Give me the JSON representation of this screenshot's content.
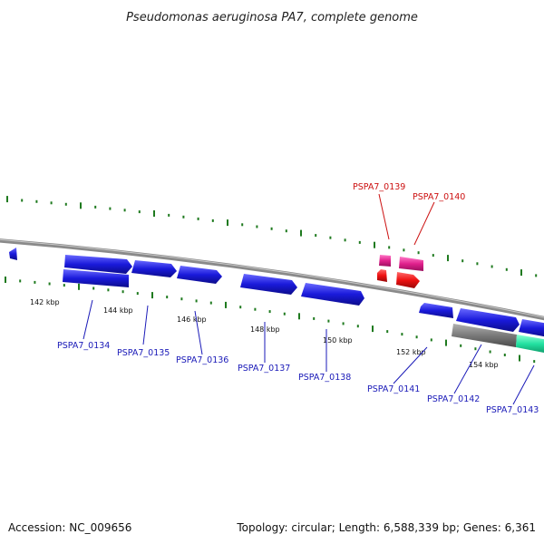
{
  "title": "Pseudomonas aeruginosa PA7, complete genome",
  "footer": {
    "accession": "Accession: NC_009656",
    "summary": "Topology: circular; Length: 6,588,339 bp; Genes: 6,361"
  },
  "colors": {
    "backbone": "#808080",
    "gene_fwd": "#1a1adb",
    "gene_rev": "#1a1adb",
    "gene_pink": "#e0208c",
    "gene_red": "#ee1111",
    "feature_gray": "#7a7a7a",
    "feature_teal": "#22e0a0",
    "gc_ticks": "#1f7a1f",
    "label_blue": "#1a1ab8",
    "label_red": "#cc1111"
  },
  "scale_labels": [
    {
      "name": "kbp-142",
      "text": "142 kbp"
    },
    {
      "name": "kbp-144",
      "text": "144 kbp"
    },
    {
      "name": "kbp-146",
      "text": "146 kbp"
    },
    {
      "name": "kbp-148",
      "text": "148 kbp"
    },
    {
      "name": "kbp-150",
      "text": "150 kbp"
    },
    {
      "name": "kbp-152",
      "text": "152 kbp"
    },
    {
      "name": "kbp-154",
      "text": "154 kbp"
    }
  ],
  "genes": [
    {
      "name": "PSPA7_0134",
      "color": "label_blue"
    },
    {
      "name": "PSPA7_0135",
      "color": "label_blue"
    },
    {
      "name": "PSPA7_0136",
      "color": "label_blue"
    },
    {
      "name": "PSPA7_0137",
      "color": "label_blue"
    },
    {
      "name": "PSPA7_0138",
      "color": "label_blue"
    },
    {
      "name": "PSPA7_0139",
      "color": "label_red"
    },
    {
      "name": "PSPA7_0140",
      "color": "label_red"
    },
    {
      "name": "PSPA7_0141",
      "color": "label_blue"
    },
    {
      "name": "PSPA7_0142",
      "color": "label_blue"
    },
    {
      "name": "PSPA7_0143",
      "color": "label_blue"
    }
  ]
}
